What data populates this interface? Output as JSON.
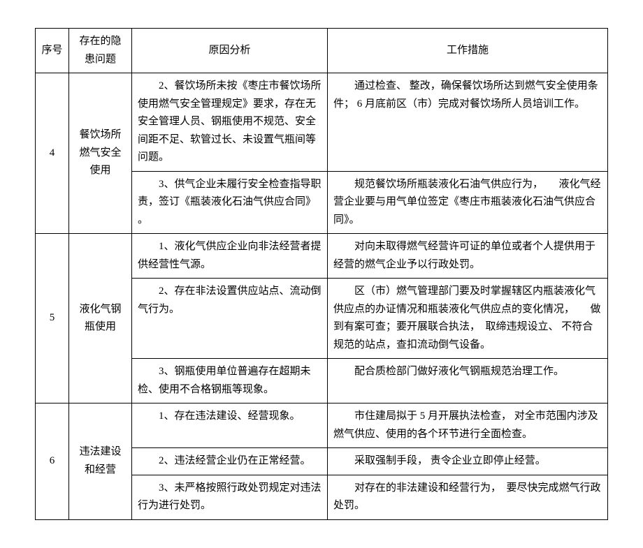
{
  "table": {
    "headers": {
      "seq": "序号",
      "issue": "存在的隐患问题",
      "cause": "原因分析",
      "measure": "工作措施"
    },
    "rows": [
      {
        "seq": "4",
        "issue": "餐饮场所燃气安全使用",
        "subrows": [
          {
            "cause": "2、餐饮场所未按《枣庄市餐饮场所使用燃气安全管理规定》要求，存在无安全管理人员、钢瓶使用不规范、安全间距不足、软管过长、未设置气瓶间等问题。",
            "measure": "通过检查、 整改，确保餐饮场所达到燃气安全使用条件； 6 月底前区（市）完成对餐饮场所人员培训工作。"
          },
          {
            "cause": "3、供气企业未履行安全检查指导职责，签订《瓶装液化石油气供应合同》 。",
            "measure": "规范餐饮场所瓶装液化石油气供应行为，　　液化气经营企业要与用气单位签定《枣庄市瓶装液化石油气供应合同》。"
          }
        ]
      },
      {
        "seq": "5",
        "issue": "液化气钢瓶使用",
        "subrows": [
          {
            "cause": "1、液化气供应企业向非法经营者提供经营性气源。",
            "measure": "对向未取得燃气经营许可证的单位或者个人提供用于经营的燃气企业予以行政处罚。"
          },
          {
            "cause": "2、存在非法设置供应站点、流动倒气行为。",
            "measure": "区（市）燃气管理部门要及时掌握辖区内瓶装液化气供应点的办证情况和瓶装液化气供应点的变化情况，　　做到有案可查；要开展联合执法，　取缔违规设立、 不符合规范的站点，查扣流动倒气设备。"
          },
          {
            "cause": "3、钢瓶使用单位普遍存在超期未检、使用不合格钢瓶等现象。",
            "measure": "配合质检部门做好液化气钢瓶规范治理工作。"
          }
        ]
      },
      {
        "seq": "6",
        "issue": "违法建设和经营",
        "subrows": [
          {
            "cause": "1、存在违法建设、经营现象。",
            "measure": "市住建局拟于 5 月开展执法检查， 对全市范围内涉及燃气供应、使用的各个环节进行全面检查。"
          },
          {
            "cause": "2、违法经营企业仍在正常经营。",
            "measure": "采取强制手段， 责令企业立即停止经营。"
          },
          {
            "cause": "3、未严格按照行政处罚规定对违法行为进行处罚。",
            "measure": "对存在的非法建设和经营行为，　要尽快完成燃气行政处罚。"
          }
        ]
      }
    ]
  },
  "style": {
    "font_family": "SimSun",
    "font_size_pt": 11,
    "border_color": "#000000",
    "background_color": "#ffffff",
    "text_color": "#000000"
  }
}
